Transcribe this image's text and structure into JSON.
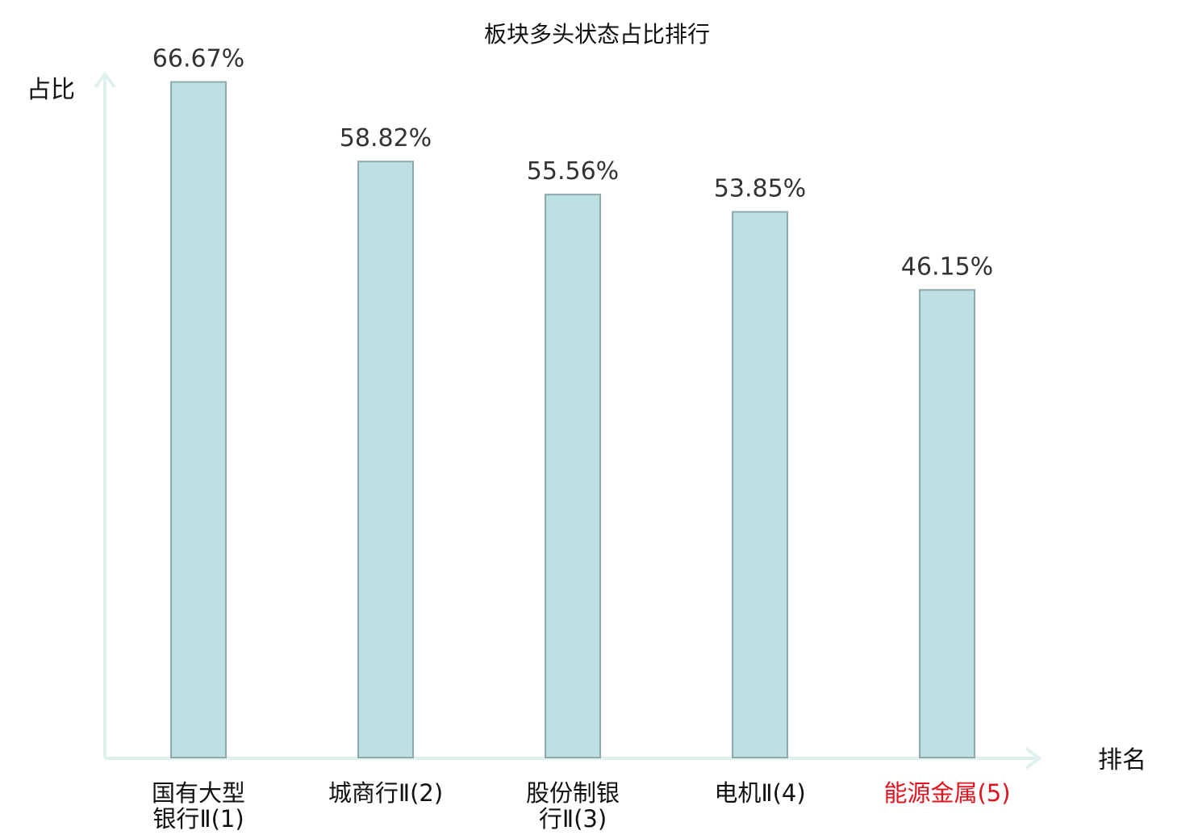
{
  "colors": {
    "bar_fill": "#bde1e3",
    "bar_stroke": "#8fa8aa",
    "axis": "#dff1ee",
    "highlight": "#e0141e",
    "text": "#111111"
  },
  "chart_data": {
    "type": "bar",
    "title": "板块多头状态占比排行",
    "xlabel": "排名",
    "ylabel": "占比",
    "ylim": [
      0,
      72
    ],
    "grid": false,
    "categories": [
      [
        "国有大型",
        "银行Ⅱ(1)"
      ],
      [
        "城商行Ⅱ(2)"
      ],
      [
        "股份制银",
        "行Ⅱ(3)"
      ],
      [
        "电机Ⅱ(4)"
      ],
      [
        "能源金属(5)"
      ]
    ],
    "values": [
      66.67,
      58.82,
      55.56,
      53.85,
      46.15
    ],
    "value_labels": [
      "66.67%",
      "58.82%",
      "55.56%",
      "53.85%",
      "46.15%"
    ],
    "highlight_index": 4
  }
}
